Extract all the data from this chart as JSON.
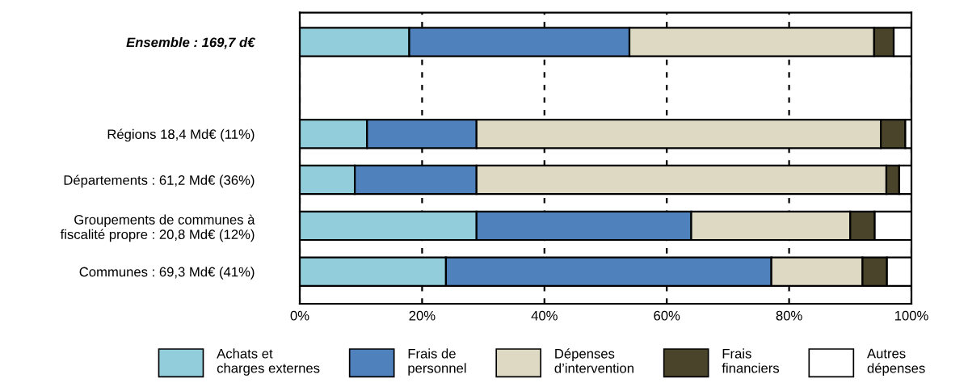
{
  "chart_data": {
    "type": "bar",
    "orientation": "horizontal",
    "stacked": true,
    "categories": [
      "Ensemble : 169,7 d€",
      null,
      "Régions 18,4 Md€ (11%)",
      "Départements : 61,2 Md€ (36%)",
      "Groupements de communes à\nfiscalité propre : 20,8 Md€ (12%)",
      "Communes : 69,3 Md€ (41%)"
    ],
    "series": [
      {
        "name": "Achats et\ncharges externes",
        "color": "#92cddc",
        "values": [
          17.9,
          null,
          11.0,
          9.0,
          28.9,
          23.9
        ]
      },
      {
        "name": "Frais de\npersonnel",
        "color": "#4f81bd",
        "values": [
          36.0,
          null,
          17.9,
          19.9,
          35.1,
          53.2
        ]
      },
      {
        "name": "Dépenses\nd’intervention",
        "color": "#ddd9c3",
        "values": [
          40.0,
          null,
          66.1,
          67.0,
          26.0,
          14.9
        ]
      },
      {
        "name": "Frais\nfinanciers",
        "color": "#4a452a",
        "values": [
          3.2,
          null,
          4.0,
          2.1,
          4.0,
          4.0
        ]
      },
      {
        "name": "Autres\ndépenses",
        "color": "#ffffff",
        "values": [
          2.9,
          null,
          1.0,
          2.0,
          6.0,
          4.0
        ]
      }
    ],
    "xlim": [
      0,
      100
    ],
    "xticks": [
      {
        "value": 0,
        "label": "0%"
      },
      {
        "value": 20,
        "label": "20%"
      },
      {
        "value": 40,
        "label": "40%"
      },
      {
        "value": 60,
        "label": "60%"
      },
      {
        "value": 80,
        "label": "80%"
      },
      {
        "value": 100,
        "label": "100%"
      }
    ],
    "grid": "x",
    "legend": "bottom"
  }
}
